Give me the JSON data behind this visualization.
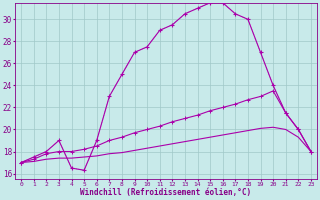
{
  "background_color": "#c8eaea",
  "grid_color": "#a0c8c8",
  "line_color": "#aa00aa",
  "xlabel": "Windchill (Refroidissement éolien,°C)",
  "xlim": [
    -0.5,
    23.5
  ],
  "ylim": [
    15.5,
    31.5
  ],
  "yticks": [
    16,
    18,
    20,
    22,
    24,
    26,
    28,
    30
  ],
  "xticks": [
    0,
    1,
    2,
    3,
    4,
    5,
    6,
    7,
    8,
    9,
    10,
    11,
    12,
    13,
    14,
    15,
    16,
    17,
    18,
    19,
    20,
    21,
    22,
    23
  ],
  "curve1_x": [
    0,
    1,
    2,
    3,
    4,
    5,
    6,
    7,
    8,
    9,
    10,
    11,
    12,
    13,
    14,
    15,
    16,
    17,
    18,
    19,
    20,
    21,
    22,
    23
  ],
  "curve1_y": [
    17.0,
    17.5,
    18.0,
    19.0,
    16.5,
    16.3,
    19.0,
    23.0,
    25.0,
    27.0,
    27.5,
    29.0,
    29.5,
    30.5,
    31.0,
    31.5,
    31.5,
    30.5,
    30.0,
    27.0,
    24.0,
    21.5,
    20.0,
    18.0
  ],
  "curve2_x": [
    0,
    1,
    2,
    3,
    4,
    5,
    6,
    7,
    8,
    9,
    10,
    11,
    12,
    13,
    14,
    15,
    16,
    17,
    18,
    19,
    20,
    21,
    22,
    23
  ],
  "curve2_y": [
    17.0,
    17.3,
    17.8,
    18.0,
    18.0,
    18.2,
    18.5,
    19.0,
    19.3,
    19.7,
    20.0,
    20.3,
    20.7,
    21.0,
    21.3,
    21.7,
    22.0,
    22.3,
    22.7,
    23.0,
    23.5,
    21.5,
    20.0,
    18.0
  ],
  "curve3_x": [
    0,
    1,
    2,
    3,
    4,
    5,
    6,
    7,
    8,
    9,
    10,
    11,
    12,
    13,
    14,
    15,
    16,
    17,
    18,
    19,
    20,
    21,
    22,
    23
  ],
  "curve3_y": [
    17.0,
    17.1,
    17.3,
    17.4,
    17.4,
    17.5,
    17.6,
    17.8,
    17.9,
    18.1,
    18.3,
    18.5,
    18.7,
    18.9,
    19.1,
    19.3,
    19.5,
    19.7,
    19.9,
    20.1,
    20.2,
    20.0,
    19.3,
    18.0
  ]
}
